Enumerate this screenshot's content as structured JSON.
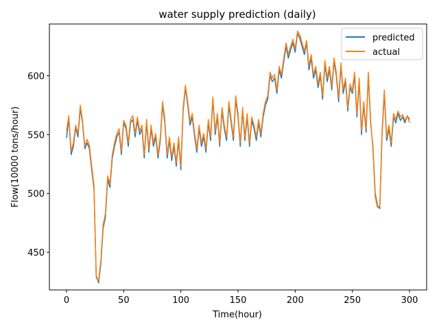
{
  "chart_data": {
    "type": "line",
    "title": "water supply prediction (daily)",
    "xlabel": "Time(hour)",
    "ylabel": "Flow(10000 tons/hour)",
    "xlim": [
      -15,
      315
    ],
    "ylim": [
      418,
      644
    ],
    "xticks": [
      0,
      50,
      100,
      150,
      200,
      250,
      300
    ],
    "yticks": [
      450,
      500,
      550,
      600
    ],
    "legend_position": "top-right",
    "series": [
      {
        "name": "predicted",
        "color": "#1f77b4",
        "points": [
          [
            0,
            547
          ],
          [
            2,
            564
          ],
          [
            4,
            533
          ],
          [
            6,
            540
          ],
          [
            8,
            556
          ],
          [
            10,
            548
          ],
          [
            12,
            572
          ],
          [
            14,
            560
          ],
          [
            16,
            538
          ],
          [
            18,
            543
          ],
          [
            20,
            538
          ],
          [
            22,
            520
          ],
          [
            24,
            504
          ],
          [
            26,
            430
          ],
          [
            28,
            424
          ],
          [
            30,
            440
          ],
          [
            32,
            470
          ],
          [
            34,
            480
          ],
          [
            36,
            512
          ],
          [
            38,
            505
          ],
          [
            40,
            530
          ],
          [
            42,
            540
          ],
          [
            44,
            548
          ],
          [
            46,
            552
          ],
          [
            48,
            533
          ],
          [
            50,
            560
          ],
          [
            52,
            555
          ],
          [
            54,
            540
          ],
          [
            56,
            560
          ],
          [
            58,
            563
          ],
          [
            60,
            548
          ],
          [
            62,
            562
          ],
          [
            64,
            550
          ],
          [
            66,
            555
          ],
          [
            68,
            530
          ],
          [
            70,
            560
          ],
          [
            72,
            535
          ],
          [
            74,
            555
          ],
          [
            76,
            540
          ],
          [
            78,
            548
          ],
          [
            80,
            530
          ],
          [
            82,
            545
          ],
          [
            84,
            575
          ],
          [
            86,
            560
          ],
          [
            88,
            530
          ],
          [
            90,
            545
          ],
          [
            92,
            528
          ],
          [
            94,
            540
          ],
          [
            96,
            523
          ],
          [
            98,
            545
          ],
          [
            100,
            520
          ],
          [
            102,
            570
          ],
          [
            104,
            590
          ],
          [
            106,
            575
          ],
          [
            108,
            558
          ],
          [
            110,
            565
          ],
          [
            112,
            548
          ],
          [
            114,
            535
          ],
          [
            116,
            555
          ],
          [
            118,
            540
          ],
          [
            120,
            548
          ],
          [
            122,
            535
          ],
          [
            124,
            560
          ],
          [
            126,
            545
          ],
          [
            128,
            580
          ],
          [
            130,
            550
          ],
          [
            132,
            565
          ],
          [
            134,
            540
          ],
          [
            136,
            570
          ],
          [
            138,
            555
          ],
          [
            140,
            545
          ],
          [
            142,
            575
          ],
          [
            144,
            560
          ],
          [
            146,
            545
          ],
          [
            148,
            580
          ],
          [
            150,
            565
          ],
          [
            152,
            540
          ],
          [
            154,
            570
          ],
          [
            156,
            545
          ],
          [
            158,
            565
          ],
          [
            160,
            540
          ],
          [
            162,
            562
          ],
          [
            164,
            555
          ],
          [
            166,
            545
          ],
          [
            168,
            560
          ],
          [
            170,
            548
          ],
          [
            172,
            565
          ],
          [
            174,
            575
          ],
          [
            176,
            580
          ],
          [
            178,
            600
          ],
          [
            180,
            595
          ],
          [
            182,
            598
          ],
          [
            184,
            585
          ],
          [
            186,
            605
          ],
          [
            188,
            598
          ],
          [
            190,
            612
          ],
          [
            192,
            625
          ],
          [
            194,
            615
          ],
          [
            196,
            622
          ],
          [
            198,
            628
          ],
          [
            200,
            620
          ],
          [
            202,
            636
          ],
          [
            204,
            632
          ],
          [
            206,
            625
          ],
          [
            208,
            618
          ],
          [
            210,
            628
          ],
          [
            212,
            605
          ],
          [
            214,
            615
          ],
          [
            216,
            598
          ],
          [
            218,
            605
          ],
          [
            220,
            590
          ],
          [
            222,
            600
          ],
          [
            224,
            580
          ],
          [
            226,
            610
          ],
          [
            228,
            595
          ],
          [
            230,
            605
          ],
          [
            232,
            588
          ],
          [
            234,
            612
          ],
          [
            236,
            600
          ],
          [
            238,
            578
          ],
          [
            240,
            608
          ],
          [
            242,
            585
          ],
          [
            244,
            595
          ],
          [
            246,
            570
          ],
          [
            248,
            590
          ],
          [
            250,
            585
          ],
          [
            252,
            600
          ],
          [
            254,
            565
          ],
          [
            256,
            595
          ],
          [
            258,
            550
          ],
          [
            260,
            575
          ],
          [
            262,
            552
          ],
          [
            264,
            600
          ],
          [
            266,
            560
          ],
          [
            268,
            540
          ],
          [
            270,
            500
          ],
          [
            272,
            490
          ],
          [
            274,
            487
          ],
          [
            276,
            550
          ],
          [
            278,
            585
          ],
          [
            280,
            545
          ],
          [
            282,
            555
          ],
          [
            284,
            540
          ],
          [
            286,
            565
          ],
          [
            288,
            560
          ],
          [
            290,
            568
          ],
          [
            292,
            562
          ],
          [
            294,
            565
          ],
          [
            296,
            560
          ],
          [
            298,
            566
          ],
          [
            300,
            563
          ]
        ]
      },
      {
        "name": "actual",
        "color": "#ff7f0e",
        "points": [
          [
            0,
            553
          ],
          [
            2,
            566
          ],
          [
            4,
            536
          ],
          [
            6,
            543
          ],
          [
            8,
            558
          ],
          [
            10,
            551
          ],
          [
            12,
            575
          ],
          [
            14,
            562
          ],
          [
            16,
            540
          ],
          [
            18,
            546
          ],
          [
            20,
            541
          ],
          [
            22,
            523
          ],
          [
            24,
            507
          ],
          [
            26,
            428
          ],
          [
            28,
            426
          ],
          [
            30,
            443
          ],
          [
            32,
            473
          ],
          [
            34,
            483
          ],
          [
            36,
            515
          ],
          [
            38,
            508
          ],
          [
            40,
            533
          ],
          [
            42,
            543
          ],
          [
            44,
            551
          ],
          [
            46,
            555
          ],
          [
            48,
            536
          ],
          [
            50,
            562
          ],
          [
            52,
            558
          ],
          [
            54,
            543
          ],
          [
            56,
            563
          ],
          [
            58,
            566
          ],
          [
            60,
            551
          ],
          [
            62,
            565
          ],
          [
            64,
            553
          ],
          [
            66,
            558
          ],
          [
            68,
            533
          ],
          [
            70,
            563
          ],
          [
            72,
            538
          ],
          [
            74,
            558
          ],
          [
            76,
            543
          ],
          [
            78,
            551
          ],
          [
            80,
            533
          ],
          [
            82,
            548
          ],
          [
            84,
            578
          ],
          [
            86,
            563
          ],
          [
            88,
            533
          ],
          [
            90,
            548
          ],
          [
            92,
            531
          ],
          [
            94,
            543
          ],
          [
            96,
            526
          ],
          [
            98,
            548
          ],
          [
            100,
            523
          ],
          [
            102,
            573
          ],
          [
            104,
            592
          ],
          [
            106,
            578
          ],
          [
            108,
            561
          ],
          [
            110,
            568
          ],
          [
            112,
            551
          ],
          [
            114,
            538
          ],
          [
            116,
            558
          ],
          [
            118,
            543
          ],
          [
            120,
            551
          ],
          [
            122,
            538
          ],
          [
            124,
            563
          ],
          [
            126,
            548
          ],
          [
            128,
            582
          ],
          [
            130,
            553
          ],
          [
            132,
            568
          ],
          [
            134,
            543
          ],
          [
            136,
            573
          ],
          [
            138,
            558
          ],
          [
            140,
            548
          ],
          [
            142,
            578
          ],
          [
            144,
            563
          ],
          [
            146,
            548
          ],
          [
            148,
            583
          ],
          [
            150,
            568
          ],
          [
            152,
            543
          ],
          [
            154,
            573
          ],
          [
            156,
            548
          ],
          [
            158,
            568
          ],
          [
            160,
            543
          ],
          [
            162,
            565
          ],
          [
            164,
            558
          ],
          [
            166,
            548
          ],
          [
            168,
            563
          ],
          [
            170,
            551
          ],
          [
            172,
            568
          ],
          [
            174,
            578
          ],
          [
            176,
            583
          ],
          [
            178,
            603
          ],
          [
            180,
            598
          ],
          [
            182,
            601
          ],
          [
            184,
            588
          ],
          [
            186,
            608
          ],
          [
            188,
            601
          ],
          [
            190,
            615
          ],
          [
            192,
            628
          ],
          [
            194,
            618
          ],
          [
            196,
            625
          ],
          [
            198,
            631
          ],
          [
            200,
            623
          ],
          [
            202,
            638
          ],
          [
            204,
            635
          ],
          [
            206,
            628
          ],
          [
            208,
            621
          ],
          [
            210,
            630
          ],
          [
            212,
            608
          ],
          [
            214,
            618
          ],
          [
            216,
            601
          ],
          [
            218,
            608
          ],
          [
            220,
            593
          ],
          [
            222,
            603
          ],
          [
            224,
            583
          ],
          [
            226,
            613
          ],
          [
            228,
            598
          ],
          [
            230,
            608
          ],
          [
            232,
            591
          ],
          [
            234,
            615
          ],
          [
            236,
            603
          ],
          [
            238,
            581
          ],
          [
            240,
            611
          ],
          [
            242,
            588
          ],
          [
            244,
            598
          ],
          [
            246,
            573
          ],
          [
            248,
            593
          ],
          [
            250,
            588
          ],
          [
            252,
            603
          ],
          [
            254,
            568
          ],
          [
            256,
            598
          ],
          [
            258,
            553
          ],
          [
            260,
            578
          ],
          [
            262,
            555
          ],
          [
            264,
            603
          ],
          [
            266,
            563
          ],
          [
            268,
            537
          ],
          [
            270,
            497
          ],
          [
            272,
            488
          ],
          [
            274,
            489
          ],
          [
            276,
            553
          ],
          [
            278,
            588
          ],
          [
            280,
            548
          ],
          [
            282,
            558
          ],
          [
            284,
            543
          ],
          [
            286,
            568
          ],
          [
            288,
            563
          ],
          [
            290,
            570
          ],
          [
            292,
            565
          ],
          [
            294,
            567
          ],
          [
            296,
            562
          ],
          [
            298,
            566
          ],
          [
            300,
            560
          ]
        ]
      }
    ]
  }
}
